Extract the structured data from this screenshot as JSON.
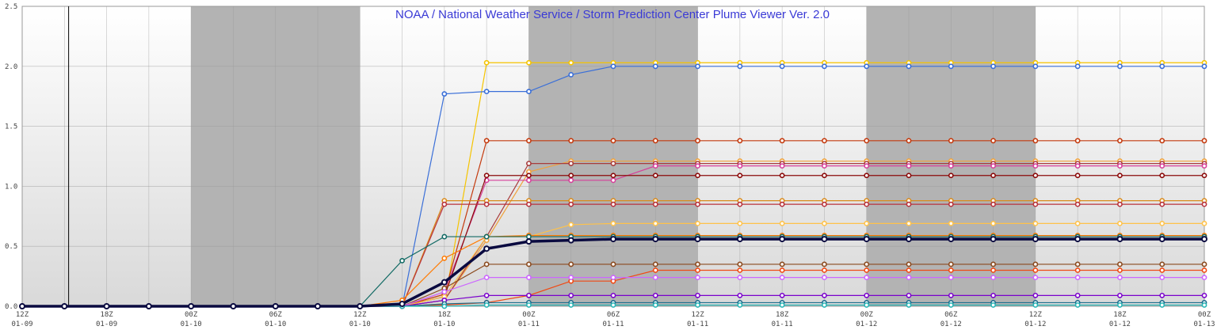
{
  "chart_data": {
    "type": "line",
    "title": "NOAA / National Weather Service / Storm Prediction Center Plume Viewer Ver. 2.0",
    "xlabel": "",
    "ylabel": "",
    "ylim": [
      0,
      2.5
    ],
    "y_ticks": [
      "0.0",
      "0.5",
      "1.0",
      "1.5",
      "2.0",
      "2.5"
    ],
    "y_tick_values": [
      0,
      0.5,
      1.0,
      1.5,
      2.0,
      2.5
    ],
    "x_ticks": [
      {
        "t": 0,
        "hour": "12Z",
        "date": "01-09"
      },
      {
        "t": 2,
        "hour": "18Z",
        "date": "01-09"
      },
      {
        "t": 4,
        "hour": "00Z",
        "date": "01-10"
      },
      {
        "t": 6,
        "hour": "06Z",
        "date": "01-10"
      },
      {
        "t": 8,
        "hour": "12Z",
        "date": "01-10"
      },
      {
        "t": 10,
        "hour": "18Z",
        "date": "01-10"
      },
      {
        "t": 12,
        "hour": "00Z",
        "date": "01-11"
      },
      {
        "t": 14,
        "hour": "06Z",
        "date": "01-11"
      },
      {
        "t": 16,
        "hour": "12Z",
        "date": "01-11"
      },
      {
        "t": 18,
        "hour": "18Z",
        "date": "01-11"
      },
      {
        "t": 20,
        "hour": "00Z",
        "date": "01-12"
      },
      {
        "t": 22,
        "hour": "06Z",
        "date": "01-12"
      },
      {
        "t": 24,
        "hour": "12Z",
        "date": "01-12"
      },
      {
        "t": 26,
        "hour": "18Z",
        "date": "01-12"
      },
      {
        "t": 28,
        "hour": "00Z",
        "date": "01-13"
      }
    ],
    "x_range": [
      0,
      28
    ],
    "night_bands": [
      [
        4,
        8
      ],
      [
        12,
        16
      ],
      [
        20,
        24
      ]
    ],
    "current_time_marker": 1.1,
    "grid": true,
    "legend": "none",
    "x": [
      0,
      1,
      2,
      3,
      4,
      5,
      6,
      7,
      8,
      9,
      10,
      11,
      12,
      13,
      14,
      15,
      16,
      17,
      18,
      19,
      20,
      21,
      22,
      23,
      24,
      25,
      26,
      27,
      28
    ],
    "series": [
      {
        "color": "#f5c400",
        "values": [
          0,
          0,
          0,
          0,
          0,
          0,
          0,
          0,
          0,
          0,
          0.02,
          2.03,
          2.03,
          2.03,
          2.03,
          2.03,
          2.03,
          2.03,
          2.03,
          2.03,
          2.03,
          2.03,
          2.03,
          2.03,
          2.03,
          2.03,
          2.03,
          2.03,
          2.03
        ]
      },
      {
        "color": "#3a6fd8",
        "values": [
          0,
          0,
          0,
          0,
          0,
          0,
          0,
          0,
          0,
          0,
          1.77,
          1.79,
          1.79,
          1.93,
          2.0,
          2.0,
          2.0,
          2.0,
          2.0,
          2.0,
          2.0,
          2.0,
          2.0,
          2.0,
          2.0,
          2.0,
          2.0,
          2.0,
          2.0
        ]
      },
      {
        "color": "#c43a0e",
        "values": [
          0,
          0,
          0,
          0,
          0,
          0,
          0,
          0,
          0,
          0,
          0.1,
          1.38,
          1.38,
          1.38,
          1.38,
          1.38,
          1.38,
          1.38,
          1.38,
          1.38,
          1.38,
          1.38,
          1.38,
          1.38,
          1.38,
          1.38,
          1.38,
          1.38,
          1.38
        ]
      },
      {
        "color": "#f0a23c",
        "values": [
          0,
          0,
          0,
          0,
          0,
          0,
          0,
          0,
          0,
          0,
          0.05,
          0.55,
          1.12,
          1.21,
          1.21,
          1.21,
          1.21,
          1.21,
          1.21,
          1.21,
          1.21,
          1.21,
          1.21,
          1.21,
          1.21,
          1.21,
          1.21,
          1.21,
          1.21
        ]
      },
      {
        "color": "#a83c3c",
        "values": [
          0,
          0,
          0,
          0,
          0,
          0,
          0,
          0,
          0,
          0,
          0.05,
          0.58,
          1.19,
          1.19,
          1.19,
          1.19,
          1.19,
          1.19,
          1.19,
          1.19,
          1.19,
          1.19,
          1.19,
          1.19,
          1.19,
          1.19,
          1.19,
          1.19,
          1.19
        ]
      },
      {
        "color": "#d6409a",
        "values": [
          0,
          0,
          0,
          0,
          0,
          0,
          0,
          0,
          0,
          0,
          0.12,
          1.05,
          1.05,
          1.05,
          1.05,
          1.17,
          1.17,
          1.17,
          1.17,
          1.17,
          1.17,
          1.17,
          1.17,
          1.17,
          1.17,
          1.17,
          1.17,
          1.17,
          1.17
        ]
      },
      {
        "color": "#8b0a0a",
        "values": [
          0,
          0,
          0,
          0,
          0,
          0,
          0,
          0,
          0,
          0,
          0.08,
          1.09,
          1.09,
          1.09,
          1.09,
          1.09,
          1.09,
          1.09,
          1.09,
          1.09,
          1.09,
          1.09,
          1.09,
          1.09,
          1.09,
          1.09,
          1.09,
          1.09,
          1.09
        ]
      },
      {
        "color": "#d98a1a",
        "values": [
          0,
          0,
          0,
          0,
          0,
          0,
          0,
          0,
          0,
          0,
          0.88,
          0.88,
          0.88,
          0.88,
          0.88,
          0.88,
          0.88,
          0.88,
          0.88,
          0.88,
          0.88,
          0.88,
          0.88,
          0.88,
          0.88,
          0.88,
          0.88,
          0.88,
          0.88
        ]
      },
      {
        "color": "#b8323c",
        "values": [
          0,
          0,
          0,
          0,
          0,
          0,
          0,
          0,
          0,
          0,
          0.85,
          0.85,
          0.85,
          0.85,
          0.85,
          0.85,
          0.85,
          0.85,
          0.85,
          0.85,
          0.85,
          0.85,
          0.85,
          0.85,
          0.85,
          0.85,
          0.85,
          0.85,
          0.85
        ]
      },
      {
        "color": "#ffc24a",
        "values": [
          0,
          0,
          0,
          0,
          0,
          0,
          0,
          0,
          0,
          0,
          0.08,
          0.58,
          0.58,
          0.68,
          0.69,
          0.69,
          0.69,
          0.69,
          0.69,
          0.69,
          0.69,
          0.69,
          0.69,
          0.69,
          0.69,
          0.69,
          0.69,
          0.69,
          0.69
        ]
      },
      {
        "color": "#ff7a00",
        "values": [
          0,
          0,
          0,
          0,
          0,
          0,
          0,
          0,
          0,
          0.05,
          0.4,
          0.58,
          0.59,
          0.59,
          0.59,
          0.59,
          0.59,
          0.59,
          0.59,
          0.59,
          0.59,
          0.59,
          0.59,
          0.59,
          0.59,
          0.59,
          0.59,
          0.59,
          0.59
        ]
      },
      {
        "color": "#126a64",
        "values": [
          0,
          0,
          0,
          0,
          0,
          0,
          0,
          0,
          0,
          0.38,
          0.58,
          0.58,
          0.58,
          0.58,
          0.58,
          0.58,
          0.58,
          0.58,
          0.58,
          0.58,
          0.58,
          0.58,
          0.58,
          0.58,
          0.58,
          0.58,
          0.58,
          0.58,
          0.58
        ]
      },
      {
        "color": "#8b4a1e",
        "values": [
          0,
          0,
          0,
          0,
          0,
          0,
          0,
          0,
          0,
          0,
          0.15,
          0.35,
          0.35,
          0.35,
          0.35,
          0.35,
          0.35,
          0.35,
          0.35,
          0.35,
          0.35,
          0.35,
          0.35,
          0.35,
          0.35,
          0.35,
          0.35,
          0.35,
          0.35
        ]
      },
      {
        "color": "#f04a14",
        "values": [
          0,
          0,
          0,
          0,
          0,
          0,
          0,
          0,
          0,
          0,
          0.01,
          0.03,
          0.09,
          0.21,
          0.21,
          0.3,
          0.3,
          0.3,
          0.3,
          0.3,
          0.3,
          0.3,
          0.3,
          0.3,
          0.3,
          0.3,
          0.3,
          0.3,
          0.3
        ]
      },
      {
        "color": "#cc66ff",
        "values": [
          0,
          0,
          0,
          0,
          0,
          0,
          0,
          0,
          0,
          0,
          0.12,
          0.24,
          0.24,
          0.24,
          0.24,
          0.24,
          0.24,
          0.24,
          0.24,
          0.24,
          0.24,
          0.24,
          0.24,
          0.24,
          0.24,
          0.24,
          0.24,
          0.24,
          0.24
        ]
      },
      {
        "color": "#7a00cc",
        "values": [
          0,
          0,
          0,
          0,
          0,
          0,
          0,
          0,
          0,
          0,
          0.05,
          0.09,
          0.09,
          0.09,
          0.09,
          0.09,
          0.09,
          0.09,
          0.09,
          0.09,
          0.09,
          0.09,
          0.09,
          0.09,
          0.09,
          0.09,
          0.09,
          0.09,
          0.09
        ]
      },
      {
        "color": "#1e6f8f",
        "values": [
          0,
          0,
          0,
          0,
          0,
          0,
          0,
          0,
          0,
          0,
          0.02,
          0.03,
          0.03,
          0.03,
          0.03,
          0.03,
          0.03,
          0.03,
          0.03,
          0.03,
          0.03,
          0.03,
          0.03,
          0.03,
          0.03,
          0.03,
          0.03,
          0.03,
          0.03
        ]
      },
      {
        "color": "#27b5b5",
        "values": [
          0,
          0,
          0,
          0,
          0,
          0,
          0,
          0,
          0,
          0,
          0,
          0.01,
          0.01,
          0.01,
          0.01,
          0.01,
          0.01,
          0.01,
          0.01,
          0.01,
          0.01,
          0.01,
          0.01,
          0.01,
          0.01,
          0.01,
          0.01,
          0.01,
          0.01
        ]
      },
      {
        "color": "#0a0a40",
        "mean": true,
        "values": [
          0,
          0,
          0,
          0,
          0,
          0,
          0,
          0,
          0,
          0.02,
          0.2,
          0.48,
          0.54,
          0.55,
          0.56,
          0.56,
          0.56,
          0.56,
          0.56,
          0.56,
          0.56,
          0.56,
          0.56,
          0.56,
          0.56,
          0.56,
          0.56,
          0.56,
          0.56
        ]
      }
    ]
  }
}
